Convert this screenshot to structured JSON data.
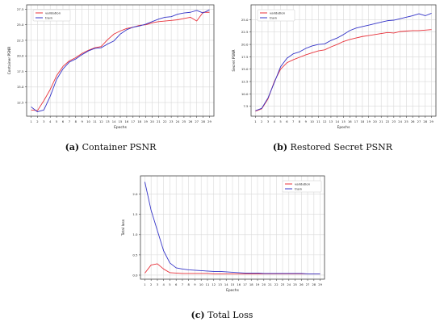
{
  "colors": {
    "validation": "#e8313a",
    "train": "#3434c8",
    "grid": "#d9d9d9",
    "axis": "#444444"
  },
  "captions": [
    {
      "label": "(a)",
      "text": "Container PSNR"
    },
    {
      "label": "(b)",
      "text": "Restored Secret PSNR"
    },
    {
      "label": "(c)",
      "text": "Total Loss"
    }
  ],
  "chart_data": [
    {
      "type": "line",
      "xlabel": "Epochs",
      "ylabel": "Container PSNR",
      "x": [
        1,
        2,
        3,
        4,
        5,
        6,
        7,
        8,
        9,
        10,
        11,
        12,
        13,
        14,
        15,
        16,
        17,
        18,
        19,
        20,
        21,
        22,
        23,
        24,
        25,
        26,
        27,
        28,
        29
      ],
      "xlim": [
        0.3,
        29.7
      ],
      "ylim": [
        10.3,
        28.2
      ],
      "yticks": [
        12.5,
        15.0,
        17.5,
        20.0,
        22.5,
        25.0,
        27.5
      ],
      "ytick_labels": [
        "12.5",
        "15.0",
        "17.5",
        "20.0",
        "22.5",
        "25.0",
        "27.5"
      ],
      "grid": true,
      "legend_position": "top-left",
      "series": [
        {
          "name": "validation",
          "color": "#e8313a",
          "values": [
            11.3,
            11.2,
            12.8,
            14.6,
            16.8,
            18.3,
            19.2,
            19.7,
            20.4,
            20.9,
            21.3,
            21.5,
            22.6,
            23.5,
            24.0,
            24.4,
            24.6,
            24.9,
            25.0,
            25.3,
            25.5,
            25.6,
            25.7,
            25.8,
            26.0,
            26.2,
            25.6,
            27.0,
            27.0
          ]
        },
        {
          "name": "train",
          "color": "#3434c8",
          "values": [
            11.8,
            11.0,
            11.3,
            13.5,
            16.2,
            17.9,
            19.0,
            19.5,
            20.2,
            20.8,
            21.2,
            21.3,
            21.9,
            22.4,
            23.5,
            24.2,
            24.6,
            24.8,
            25.1,
            25.5,
            25.9,
            26.2,
            26.3,
            26.7,
            26.9,
            27.0,
            27.3,
            26.9,
            27.4
          ]
        }
      ]
    },
    {
      "type": "line",
      "xlabel": "Epochs",
      "ylabel": "Secret PSNR",
      "x": [
        1,
        2,
        3,
        4,
        5,
        6,
        7,
        8,
        9,
        10,
        11,
        12,
        13,
        14,
        15,
        16,
        17,
        18,
        19,
        20,
        21,
        22,
        23,
        24,
        25,
        26,
        27,
        28,
        29
      ],
      "xlim": [
        0.3,
        29.7
      ],
      "ylim": [
        5.5,
        28.0
      ],
      "yticks": [
        7.5,
        10.0,
        12.5,
        15.0,
        17.5,
        20.0,
        22.5,
        25.0
      ],
      "ytick_labels": [
        "7.5",
        "10.0",
        "12.5",
        "15.0",
        "17.5",
        "20.0",
        "22.5",
        "25.0"
      ],
      "grid": true,
      "legend_position": "top-left",
      "series": [
        {
          "name": "validation",
          "color": "#e8313a",
          "values": [
            6.5,
            7.0,
            9.0,
            12.5,
            15.0,
            16.3,
            16.9,
            17.4,
            17.9,
            18.3,
            18.7,
            18.9,
            19.5,
            20.0,
            20.6,
            21.0,
            21.3,
            21.6,
            21.8,
            22.0,
            22.2,
            22.4,
            22.3,
            22.6,
            22.7,
            22.8,
            22.8,
            22.9,
            23.0
          ]
        },
        {
          "name": "train",
          "color": "#3434c8",
          "values": [
            6.6,
            7.1,
            9.2,
            12.3,
            15.5,
            17.2,
            18.1,
            18.5,
            19.2,
            19.7,
            20.0,
            20.1,
            20.8,
            21.3,
            22.0,
            22.8,
            23.3,
            23.6,
            23.9,
            24.2,
            24.5,
            24.8,
            24.9,
            25.2,
            25.5,
            25.8,
            26.2,
            25.8,
            26.3
          ]
        }
      ]
    },
    {
      "type": "line",
      "xlabel": "Epochs",
      "ylabel": "Total loss",
      "x": [
        1,
        2,
        3,
        4,
        5,
        6,
        7,
        8,
        9,
        10,
        11,
        12,
        13,
        14,
        15,
        16,
        17,
        18,
        19,
        20,
        21,
        22,
        23,
        24,
        25,
        26,
        27,
        28,
        29
      ],
      "xlim": [
        0.3,
        29.7
      ],
      "ylim": [
        -0.1,
        2.45
      ],
      "yticks": [
        0.0,
        0.5,
        1.0,
        1.5,
        2.0
      ],
      "ytick_labels": [
        "0.0",
        "0.5",
        "1.0",
        "1.5",
        "2.0"
      ],
      "grid": true,
      "legend_position": "top-right",
      "series": [
        {
          "name": "validation",
          "color": "#e8313a",
          "values": [
            0.05,
            0.25,
            0.28,
            0.15,
            0.06,
            0.05,
            0.04,
            0.04,
            0.04,
            0.04,
            0.04,
            0.03,
            0.03,
            0.03,
            0.03,
            0.03,
            0.03,
            0.03,
            0.03,
            0.03,
            0.03,
            0.03,
            0.03,
            0.03,
            0.03,
            0.03,
            0.03,
            0.03,
            0.03
          ]
        },
        {
          "name": "train",
          "color": "#3434c8",
          "values": [
            2.3,
            1.6,
            1.1,
            0.6,
            0.3,
            0.18,
            0.15,
            0.13,
            0.12,
            0.11,
            0.1,
            0.09,
            0.09,
            0.08,
            0.07,
            0.06,
            0.05,
            0.05,
            0.05,
            0.04,
            0.04,
            0.04,
            0.04,
            0.04,
            0.04,
            0.04,
            0.03,
            0.03,
            0.03
          ]
        }
      ]
    }
  ]
}
